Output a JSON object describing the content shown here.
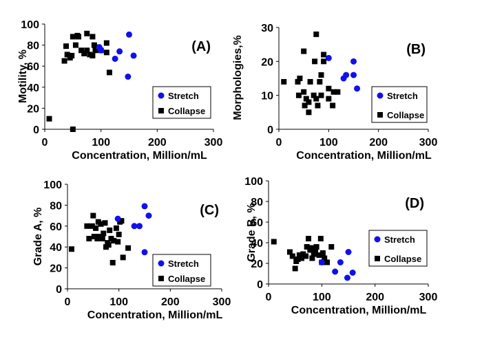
{
  "colors": {
    "stretch": "#1010ee",
    "collapse": "#000000"
  },
  "chart_data": [
    {
      "type": "scatter",
      "panel_label": "(A)",
      "xlabel": "Concentration, Million/mL",
      "ylabel": "Motility, %",
      "xlim": [
        0,
        300
      ],
      "ylim": [
        0,
        100
      ],
      "xticks": [
        "0",
        "100",
        "200",
        "300"
      ],
      "yticks": [
        "0",
        "20",
        "40",
        "60",
        "80",
        "100"
      ],
      "legend_position": "bottom-right",
      "series": [
        {
          "name": "Stretch",
          "marker": "circle",
          "color": "#1010ee",
          "points": [
            [
              97,
              78
            ],
            [
              100,
              75
            ],
            [
              125,
              67
            ],
            [
              133,
              74
            ],
            [
              150,
              90
            ],
            [
              148,
              50
            ],
            [
              158,
              70
            ]
          ]
        },
        {
          "name": "Collapse",
          "marker": "square",
          "color": "#000000",
          "points": [
            [
              8,
              10
            ],
            [
              50,
              0
            ],
            [
              35,
              65
            ],
            [
              38,
              79
            ],
            [
              40,
              71
            ],
            [
              45,
              68
            ],
            [
              48,
              70
            ],
            [
              50,
              88
            ],
            [
              55,
              80
            ],
            [
              58,
              89
            ],
            [
              60,
              88
            ],
            [
              65,
              75
            ],
            [
              70,
              72
            ],
            [
              75,
              91
            ],
            [
              75,
              75
            ],
            [
              80,
              71
            ],
            [
              85,
              70
            ],
            [
              85,
              88
            ],
            [
              88,
              80
            ],
            [
              90,
              75
            ],
            [
              95,
              78
            ],
            [
              100,
              75
            ],
            [
              110,
              82
            ],
            [
              110,
              73
            ],
            [
              115,
              54
            ]
          ]
        }
      ]
    },
    {
      "type": "scatter",
      "panel_label": "(B)",
      "xlabel": "Concentration, Million/mL",
      "ylabel": "Morphologies,%",
      "xlim": [
        0,
        300
      ],
      "ylim": [
        0,
        30
      ],
      "xticks": [
        "0",
        "100",
        "200",
        "300"
      ],
      "yticks": [
        "0",
        "10",
        "20",
        "30"
      ],
      "legend_position": "right",
      "series": [
        {
          "name": "Stretch",
          "marker": "circle",
          "color": "#1010ee",
          "points": [
            [
              100,
              21
            ],
            [
              130,
              15
            ],
            [
              135,
              16
            ],
            [
              150,
              20
            ],
            [
              150,
              16
            ],
            [
              157,
              12
            ]
          ]
        },
        {
          "name": "Collapse",
          "marker": "square",
          "color": "#000000",
          "points": [
            [
              10,
              14
            ],
            [
              38,
              14
            ],
            [
              40,
              10
            ],
            [
              42,
              15
            ],
            [
              50,
              23
            ],
            [
              50,
              11
            ],
            [
              52,
              7
            ],
            [
              55,
              9
            ],
            [
              60,
              8
            ],
            [
              60,
              5
            ],
            [
              63,
              14
            ],
            [
              70,
              10
            ],
            [
              72,
              20
            ],
            [
              75,
              28
            ],
            [
              75,
              9
            ],
            [
              78,
              7
            ],
            [
              82,
              14
            ],
            [
              85,
              16
            ],
            [
              85,
              10
            ],
            [
              90,
              22
            ],
            [
              90,
              20
            ],
            [
              100,
              12
            ],
            [
              100,
              9
            ],
            [
              108,
              7
            ],
            [
              110,
              11
            ],
            [
              118,
              11
            ]
          ]
        }
      ]
    },
    {
      "type": "scatter",
      "panel_label": "(C)",
      "xlabel": "Concentration, Million/mL",
      "ylabel": "Grade A, %",
      "xlim": [
        0,
        300
      ],
      "ylim": [
        0,
        100
      ],
      "xticks": [
        "0",
        "100",
        "200",
        "300"
      ],
      "yticks": [
        "0",
        "20",
        "40",
        "60",
        "80",
        "100"
      ],
      "legend_position": "bottom-right",
      "series": [
        {
          "name": "Stretch",
          "marker": "circle",
          "color": "#1010ee",
          "points": [
            [
              98,
              67
            ],
            [
              130,
              60
            ],
            [
              140,
              60
            ],
            [
              150,
              79
            ],
            [
              150,
              35
            ],
            [
              158,
              70
            ]
          ]
        },
        {
          "name": "Collapse",
          "marker": "square",
          "color": "#000000",
          "points": [
            [
              8,
              38
            ],
            [
              38,
              60
            ],
            [
              42,
              48
            ],
            [
              48,
              60
            ],
            [
              50,
              70
            ],
            [
              52,
              50
            ],
            [
              55,
              58
            ],
            [
              58,
              48
            ],
            [
              60,
              64
            ],
            [
              62,
              50
            ],
            [
              65,
              62
            ],
            [
              68,
              48
            ],
            [
              70,
              53
            ],
            [
              73,
              63
            ],
            [
              75,
              40
            ],
            [
              78,
              44
            ],
            [
              80,
              42
            ],
            [
              82,
              56
            ],
            [
              85,
              48
            ],
            [
              88,
              25
            ],
            [
              90,
              46
            ],
            [
              95,
              58
            ],
            [
              98,
              45
            ],
            [
              100,
              52
            ],
            [
              102,
              64
            ],
            [
              105,
              65
            ],
            [
              108,
              30
            ],
            [
              118,
              39
            ]
          ]
        }
      ]
    },
    {
      "type": "scatter",
      "panel_label": "(D)",
      "xlabel": "Concentration, Million/mL",
      "ylabel": "Grade B, %",
      "xlim": [
        0,
        300
      ],
      "ylim": [
        0,
        100
      ],
      "xticks": [
        "0",
        "100",
        "200",
        "300"
      ],
      "yticks": [
        "0",
        "20",
        "40",
        "60",
        "80",
        "100"
      ],
      "legend_position": "right",
      "series": [
        {
          "name": "Stretch",
          "marker": "circle",
          "color": "#1010ee",
          "points": [
            [
              100,
              21
            ],
            [
              125,
              12
            ],
            [
              135,
              21
            ],
            [
              150,
              31
            ],
            [
              148,
              6
            ],
            [
              158,
              11
            ]
          ]
        },
        {
          "name": "Collapse",
          "marker": "square",
          "color": "#000000",
          "points": [
            [
              10,
              41
            ],
            [
              40,
              31
            ],
            [
              45,
              27
            ],
            [
              50,
              15
            ],
            [
              52,
              22
            ],
            [
              55,
              24
            ],
            [
              58,
              28
            ],
            [
              62,
              25
            ],
            [
              65,
              29
            ],
            [
              70,
              27
            ],
            [
              72,
              36
            ],
            [
              75,
              44
            ],
            [
              78,
              33
            ],
            [
              80,
              35
            ],
            [
              82,
              25
            ],
            [
              85,
              29
            ],
            [
              88,
              32
            ],
            [
              90,
              36
            ],
            [
              95,
              28
            ],
            [
              98,
              44
            ],
            [
              100,
              21
            ],
            [
              102,
              30
            ],
            [
              105,
              25
            ],
            [
              110,
              21
            ],
            [
              118,
              36
            ]
          ]
        }
      ]
    }
  ]
}
